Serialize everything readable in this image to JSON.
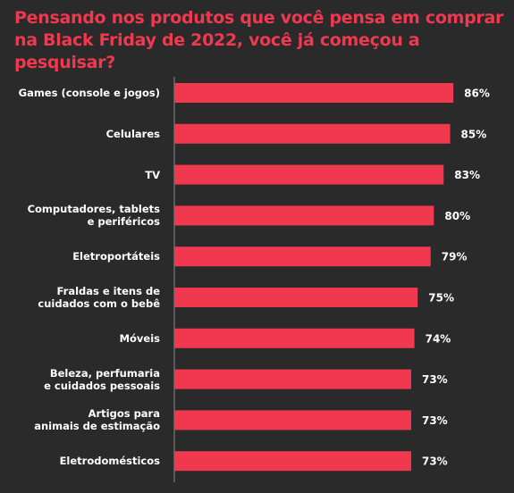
{
  "chart_data": {
    "type": "bar",
    "orientation": "horizontal",
    "title": "Pensando nos produtos que você pensa em comprar na Black Friday de 2022, você já começou a pesquisar?",
    "categories": [
      "Games (console e jogos)",
      "Celulares",
      "TV",
      "Computadores, tablets\ne periféricos",
      "Eletroportáteis",
      "Fraldas e itens de\ncuidados com o bebê",
      "Móveis",
      "Beleza, perfumaria\ne cuidados pessoais",
      "Artigos para\nanimais de estimação",
      "Eletrodomésticos"
    ],
    "values": [
      86,
      85,
      83,
      80,
      79,
      75,
      74,
      73,
      73,
      73
    ],
    "value_labels": [
      "86%",
      "85%",
      "83%",
      "80%",
      "79%",
      "75%",
      "74%",
      "73%",
      "73%",
      "73%"
    ],
    "color": "#f0384f"
  }
}
